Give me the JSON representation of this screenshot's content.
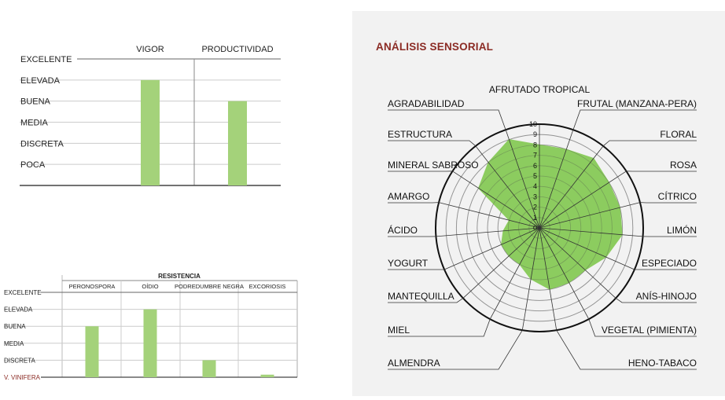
{
  "colors": {
    "bar": "#a4d27a",
    "radar_fill": "#8ccc5f",
    "title": "#8b2b24",
    "line": "#555555",
    "grid": "#cccccc"
  },
  "chart_data": [
    {
      "type": "bar",
      "categories": [
        "VIGOR",
        "PRODUCTIVIDAD"
      ],
      "levels": [
        "EXCELENTE",
        "ELEVADA",
        "BUENA",
        "MEDIA",
        "DISCRETA",
        "POCA"
      ],
      "values": [
        5,
        4
      ],
      "ylim": [
        0,
        6
      ],
      "grid": true
    },
    {
      "type": "bar",
      "title": "RESISTENCIA",
      "categories": [
        "PERONOSPORA",
        "OÍDIO",
        "PODREDUMBRE NEGRA",
        "EXCORIOSIS"
      ],
      "levels": [
        "EXCELENTE",
        "ELEVADA",
        "BUENA",
        "MEDIA",
        "DISCRETA"
      ],
      "baseline_label": "V. VINIFERA",
      "values": [
        3,
        4,
        1,
        0.15
      ],
      "ylim": [
        0,
        5
      ],
      "grid": true
    },
    {
      "type": "radar",
      "title": "ANÁLISIS SENSORIAL",
      "axis_ticks": [
        "0",
        "1",
        "2",
        "3",
        "4",
        "5",
        "6",
        "7",
        "8",
        "9",
        "10"
      ],
      "rlim": [
        0,
        10
      ],
      "categories": [
        "AFRUTADO TROPICAL",
        "FRUTAL (MANZANA-PERA)",
        "FLORAL",
        "ROSA",
        "CÍTRICO",
        "LIMÓN",
        "ESPECIADO",
        "ANÍS-HINOJO",
        "VEGETAL (PIMIENTA)",
        "HENO-TABACO",
        "ALMENDRA",
        "MIEL",
        "MANTEQUILLA",
        "YOGURT",
        "ÁCIDO",
        "AMARGO",
        "MINERAL SABROSO",
        "ESTRUCTURA",
        "AGRADABILIDAD"
      ],
      "values": [
        8,
        8,
        8.5,
        8,
        8,
        8,
        7,
        6,
        6,
        6,
        5,
        4,
        4,
        4,
        3.5,
        3,
        7,
        8,
        9
      ]
    }
  ]
}
